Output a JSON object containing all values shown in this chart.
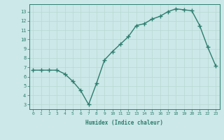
{
  "x": [
    0,
    1,
    2,
    3,
    4,
    5,
    6,
    7,
    8,
    9,
    10,
    11,
    12,
    13,
    14,
    15,
    16,
    17,
    18,
    19,
    20,
    21,
    22,
    23
  ],
  "y": [
    6.7,
    6.7,
    6.7,
    6.7,
    6.3,
    5.5,
    4.5,
    3.0,
    5.3,
    7.8,
    8.7,
    9.5,
    10.3,
    11.5,
    11.7,
    12.2,
    12.5,
    13.0,
    13.3,
    13.2,
    13.1,
    11.5,
    9.2,
    7.2
  ],
  "xlabel": "Humidex (Indice chaleur)",
  "ylim": [
    2.5,
    13.8
  ],
  "xlim": [
    -0.5,
    23.5
  ],
  "yticks": [
    3,
    4,
    5,
    6,
    7,
    8,
    9,
    10,
    11,
    12,
    13
  ],
  "xticks": [
    0,
    1,
    2,
    3,
    4,
    5,
    6,
    7,
    8,
    9,
    10,
    11,
    12,
    13,
    14,
    15,
    16,
    17,
    18,
    19,
    20,
    21,
    22,
    23
  ],
  "line_color": "#2d7d6e",
  "marker": "+",
  "bg_color": "#cce8e8",
  "grid_color": "#b8d8d4",
  "axis_color": "#2d7d6e",
  "tick_color": "#2d7d6e",
  "label_color": "#2d7d6e"
}
